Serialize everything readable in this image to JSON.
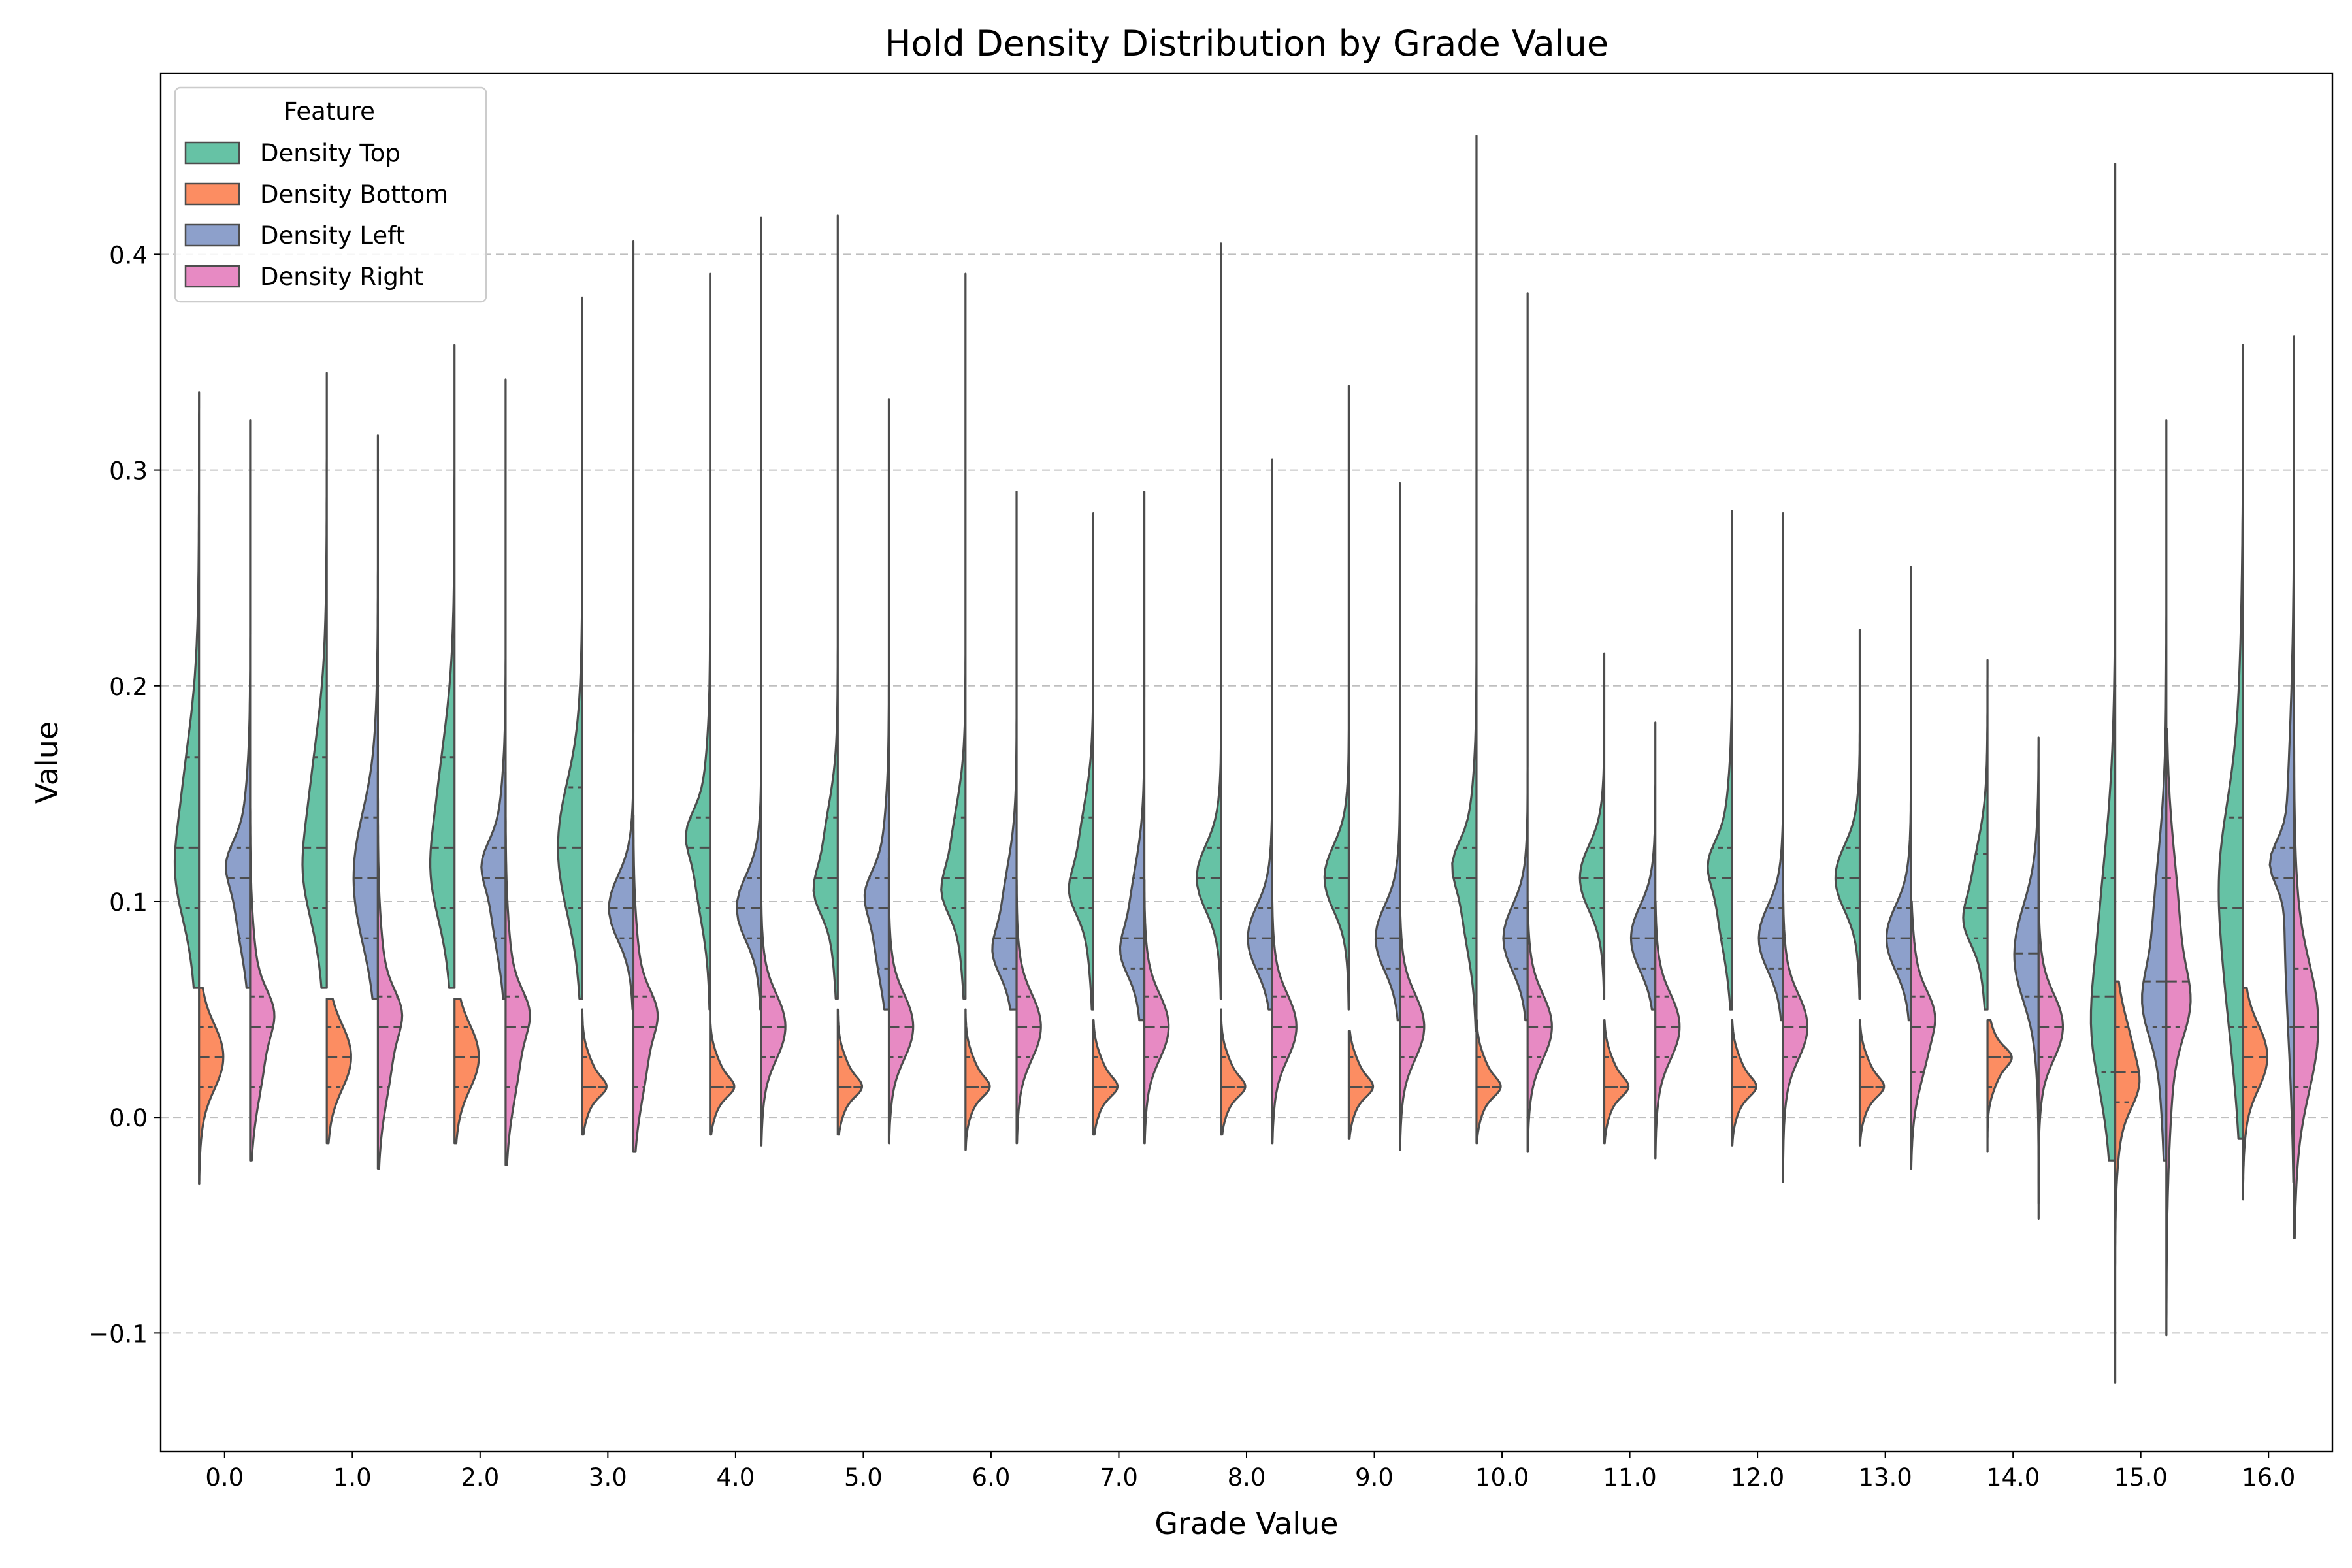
{
  "chart_data": {
    "type": "violin",
    "title": "Hold Density Distribution by Grade Value",
    "xlabel": "Grade Value",
    "ylabel": "Value",
    "ylim": [
      -0.155,
      0.484
    ],
    "y_ticks": [
      -0.1,
      0.0,
      0.1,
      0.2,
      0.3,
      0.4
    ],
    "y_tick_labels": [
      "−0.1",
      "0.0",
      "0.1",
      "0.2",
      "0.3",
      "0.4"
    ],
    "categories": [
      "0.0",
      "1.0",
      "2.0",
      "3.0",
      "4.0",
      "5.0",
      "6.0",
      "7.0",
      "8.0",
      "9.0",
      "10.0",
      "11.0",
      "12.0",
      "13.0",
      "14.0",
      "15.0",
      "16.0"
    ],
    "grid": "y-dashed",
    "legend": {
      "title": "Feature",
      "position": "top-left"
    },
    "colors": {
      "top": "#66c2a5",
      "bottom": "#fc8d62",
      "left": "#8da0cb",
      "right": "#e78ac3",
      "outline": "#4d4d4d",
      "grid": "#b0b0b0"
    },
    "series": [
      {
        "name": "Density Top",
        "color": "#66c2a5",
        "side": "left",
        "pair": 0,
        "max": [
          0.336,
          0.345,
          0.358,
          0.38,
          0.391,
          0.418,
          0.391,
          0.28,
          0.405,
          0.339,
          0.455,
          0.215,
          0.281,
          0.226,
          0.212,
          0.442,
          0.358
        ],
        "q3": [
          0.167,
          0.167,
          0.167,
          0.153,
          0.139,
          0.139,
          0.139,
          0.139,
          0.125,
          0.125,
          0.125,
          0.125,
          0.125,
          0.125,
          0.122,
          0.111,
          0.139
        ],
        "median": [
          0.125,
          0.125,
          0.125,
          0.125,
          0.125,
          0.111,
          0.111,
          0.111,
          0.111,
          0.111,
          0.111,
          0.111,
          0.111,
          0.111,
          0.097,
          0.056,
          0.097
        ],
        "q1": [
          0.097,
          0.097,
          0.097,
          0.097,
          0.097,
          0.097,
          0.097,
          0.097,
          0.097,
          0.097,
          0.083,
          0.097,
          0.083,
          0.097,
          0.083,
          0.021,
          0.042
        ],
        "min": [
          0.06,
          0.06,
          0.06,
          0.055,
          0.05,
          0.055,
          0.055,
          0.05,
          0.055,
          0.05,
          0.04,
          0.055,
          0.05,
          0.055,
          0.05,
          -0.02,
          -0.01
        ]
      },
      {
        "name": "Density Bottom",
        "color": "#fc8d62",
        "side": "right",
        "pair": 0,
        "max": [
          0.06,
          0.055,
          0.055,
          0.05,
          0.05,
          0.05,
          0.05,
          0.045,
          0.05,
          0.04,
          0.045,
          0.045,
          0.045,
          0.045,
          0.045,
          0.063,
          0.06
        ],
        "q3": [
          0.042,
          0.042,
          0.042,
          0.028,
          0.028,
          0.028,
          0.028,
          0.028,
          0.028,
          0.028,
          0.028,
          0.028,
          0.028,
          0.028,
          0.028,
          0.042,
          0.042
        ],
        "median": [
          0.028,
          0.028,
          0.028,
          0.014,
          0.014,
          0.014,
          0.014,
          0.014,
          0.014,
          0.014,
          0.014,
          0.014,
          0.014,
          0.014,
          0.028,
          0.021,
          0.028
        ],
        "q1": [
          0.014,
          0.014,
          0.014,
          0.014,
          0.014,
          0.014,
          0.014,
          0.014,
          0.014,
          0.014,
          0.014,
          0.014,
          0.014,
          0.014,
          0.014,
          0.007,
          0.014
        ],
        "min": [
          -0.031,
          -0.012,
          -0.012,
          -0.008,
          -0.008,
          -0.008,
          -0.015,
          -0.008,
          -0.008,
          -0.01,
          -0.012,
          -0.012,
          -0.013,
          -0.013,
          -0.016,
          -0.123,
          -0.038
        ]
      },
      {
        "name": "Density Left",
        "color": "#8da0cb",
        "side": "left",
        "pair": 1,
        "max": [
          0.323,
          0.316,
          0.342,
          0.406,
          0.417,
          0.333,
          0.29,
          0.29,
          0.305,
          0.294,
          0.382,
          0.183,
          0.28,
          0.255,
          0.176,
          0.323,
          0.362
        ],
        "q3": [
          0.125,
          0.139,
          0.125,
          0.111,
          0.111,
          0.111,
          0.111,
          0.111,
          0.097,
          0.097,
          0.097,
          0.097,
          0.097,
          0.097,
          0.097,
          0.111,
          0.125
        ],
        "median": [
          0.111,
          0.111,
          0.111,
          0.097,
          0.097,
          0.097,
          0.083,
          0.083,
          0.083,
          0.083,
          0.083,
          0.083,
          0.083,
          0.083,
          0.076,
          0.063,
          0.111
        ],
        "q1": [
          0.083,
          0.083,
          0.083,
          0.083,
          0.083,
          0.069,
          0.069,
          0.069,
          0.069,
          0.069,
          0.069,
          0.069,
          0.069,
          0.069,
          0.056,
          0.042,
          0.042
        ],
        "min": [
          0.06,
          0.055,
          0.055,
          0.05,
          0.05,
          0.05,
          0.05,
          0.045,
          0.05,
          0.045,
          0.045,
          0.05,
          0.045,
          0.045,
          -0.047,
          -0.02,
          -0.03
        ]
      },
      {
        "name": "Density Right",
        "color": "#e78ac3",
        "side": "right",
        "pair": 1,
        "max": [
          0.17,
          0.16,
          0.16,
          0.14,
          0.13,
          0.12,
          0.11,
          0.11,
          0.11,
          0.11,
          0.1,
          0.1,
          0.11,
          0.1,
          0.13,
          0.18,
          0.24
        ],
        "q3": [
          0.056,
          0.056,
          0.056,
          0.056,
          0.056,
          0.056,
          0.056,
          0.056,
          0.056,
          0.056,
          0.056,
          0.056,
          0.056,
          0.056,
          0.056,
          0.111,
          0.069
        ],
        "median": [
          0.042,
          0.042,
          0.042,
          0.042,
          0.042,
          0.042,
          0.042,
          0.042,
          0.042,
          0.042,
          0.042,
          0.042,
          0.042,
          0.042,
          0.042,
          0.063,
          0.042
        ],
        "q1": [
          0.014,
          0.014,
          0.014,
          0.014,
          0.028,
          0.028,
          0.028,
          0.028,
          0.028,
          0.028,
          0.028,
          0.028,
          0.028,
          0.021,
          0.028,
          0.042,
          0.014
        ],
        "min": [
          -0.02,
          -0.024,
          -0.022,
          -0.016,
          -0.013,
          -0.012,
          -0.012,
          -0.012,
          -0.012,
          -0.015,
          -0.016,
          -0.019,
          -0.03,
          -0.024,
          -0.04,
          -0.101,
          -0.056
        ]
      }
    ]
  }
}
